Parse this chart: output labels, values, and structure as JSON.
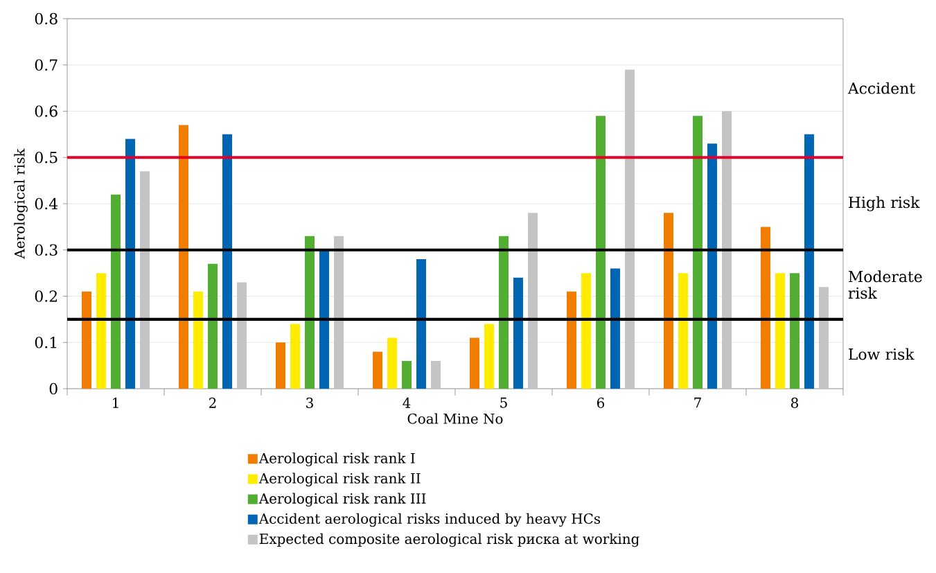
{
  "chart_data": {
    "type": "bar",
    "xlabel": "Coal Mine No",
    "ylabel": "Aerological risk",
    "categories": [
      "1",
      "2",
      "3",
      "4",
      "5",
      "6",
      "7",
      "8"
    ],
    "series": [
      {
        "name": "Aerological risk rank I",
        "color": "#f07c00",
        "values": [
          0.21,
          0.57,
          0.1,
          0.08,
          0.11,
          0.21,
          0.38,
          0.35
        ]
      },
      {
        "name": "Aerological risk rank II",
        "color": "#ffec00",
        "values": [
          0.25,
          0.21,
          0.14,
          0.11,
          0.14,
          0.25,
          0.25,
          0.25
        ]
      },
      {
        "name": "Aerological risk rank III",
        "color": "#52ad33",
        "values": [
          0.42,
          0.27,
          0.33,
          0.06,
          0.33,
          0.59,
          0.59,
          0.25
        ]
      },
      {
        "name": "Accident aerological risks induced by heavy HCs",
        "color": "#0066b3",
        "values": [
          0.54,
          0.55,
          0.3,
          0.28,
          0.24,
          0.26,
          0.53,
          0.55
        ]
      },
      {
        "name": "Expected composite aerological risk риска at working",
        "color": "#c4c4c4",
        "values": [
          0.47,
          0.23,
          0.33,
          0.06,
          0.38,
          0.69,
          0.6,
          0.22
        ]
      }
    ],
    "ylim": [
      0,
      0.8
    ],
    "yticks": [
      0,
      0.1,
      0.2,
      0.3,
      0.4,
      0.5,
      0.6,
      0.7,
      0.8
    ],
    "ref_lines": [
      {
        "axis": "y",
        "value": 0.5,
        "color": "#e4002b",
        "line_style": "solid"
      },
      {
        "axis": "y",
        "value": 0.3,
        "color": "#000000",
        "line_style": "solid"
      },
      {
        "axis": "y",
        "value": 0.15,
        "color": "#000000",
        "line_style": "solid"
      }
    ],
    "annotations": [
      "Accident",
      "High risk",
      "Moderate risk",
      "Low risk"
    ],
    "grid": "y",
    "legend": "bottom"
  }
}
